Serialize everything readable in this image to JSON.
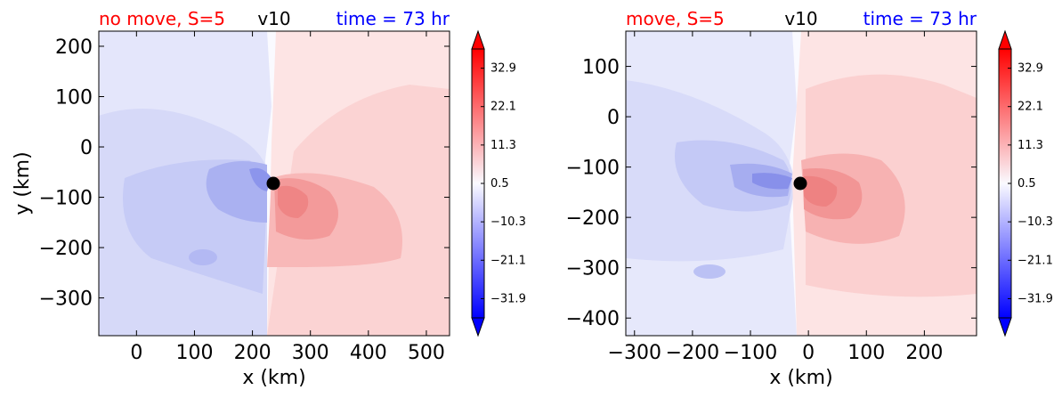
{
  "colorbar_ticks": [
    "32.9",
    "22.1",
    "11.3",
    "0.5",
    "−10.3",
    "−21.1",
    "−31.9"
  ],
  "colors": {
    "left_title": "#ff0000",
    "var_title": "#000000",
    "time_title": "#0000ff",
    "max_red": "#ff0000",
    "max_blue": "#0000ff",
    "neutral": "#fafaff",
    "center_marker": "#000000"
  },
  "chart_data": [
    {
      "type": "heatmap",
      "panel": "left",
      "title_left": "no move, S=5",
      "title_center": "v10",
      "title_right": "time = 73 hr",
      "xlabel": "x (km)",
      "ylabel": "y (km)",
      "xlim": [
        -65,
        540
      ],
      "ylim": [
        -375,
        230
      ],
      "xticks": [
        0,
        100,
        200,
        300,
        400,
        500
      ],
      "yticks": [
        200,
        100,
        0,
        -100,
        -200,
        -300
      ],
      "xtick_labels": [
        "0",
        "100",
        "200",
        "300",
        "400",
        "500"
      ],
      "ytick_labels": [
        "200",
        "100",
        "0",
        "−100",
        "−200",
        "−300"
      ],
      "center_marker": {
        "x": 238,
        "y": -70
      },
      "colorbar": {
        "ticks": [
          32.9,
          22.1,
          11.3,
          0.5,
          -10.3,
          -21.1,
          -31.9
        ],
        "extend": "both",
        "cmap": "bwr"
      }
    },
    {
      "type": "heatmap",
      "panel": "right",
      "title_left": "move, S=5",
      "title_center": "v10",
      "title_right": "time = 73 hr",
      "xlabel": "x (km)",
      "ylabel": "",
      "xlim": [
        -315,
        290
      ],
      "ylim": [
        -435,
        170
      ],
      "xticks": [
        -300,
        -200,
        -100,
        0,
        100,
        200
      ],
      "yticks": [
        100,
        0,
        -100,
        -200,
        -300,
        -400
      ],
      "xtick_labels": [
        "−300",
        "−200",
        "−100",
        "0",
        "100",
        "200"
      ],
      "ytick_labels": [
        "100",
        "0",
        "−100",
        "−200",
        "−300",
        "−400"
      ],
      "center_marker": {
        "x": -15,
        "y": -133
      },
      "colorbar": {
        "ticks": [
          32.9,
          22.1,
          11.3,
          0.5,
          -10.3,
          -21.1,
          -31.9
        ],
        "extend": "both",
        "cmap": "bwr"
      }
    }
  ]
}
